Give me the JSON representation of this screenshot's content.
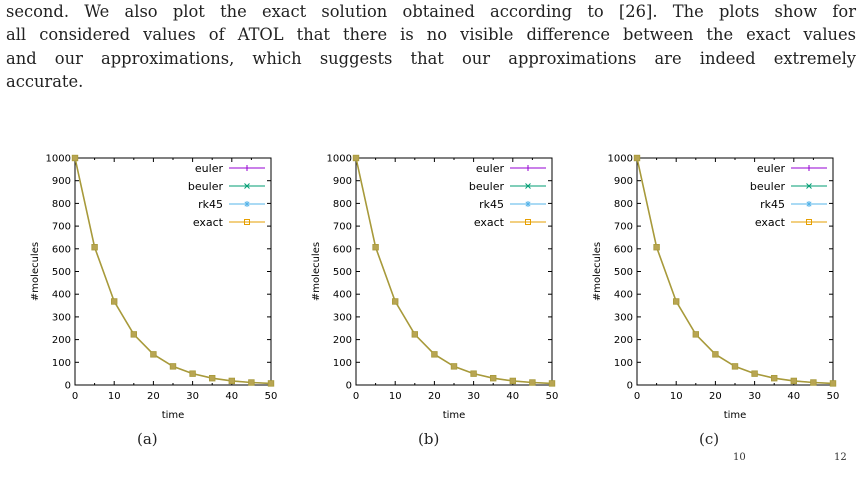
{
  "paragraph": {
    "lines": [
      "second. We also plot the exact solution obtained according to [26]. The plots show for",
      "all considered values of ATOL that there is no visible difference between the exact values",
      "and our approximations, which suggests that our approximations are indeed extremely",
      "accurate."
    ]
  },
  "subcaptions": [
    "(a)",
    "(b)",
    "(c)"
  ],
  "footer_fragments": [
    "10",
    "12"
  ],
  "colors": {
    "euler": "#9400d3",
    "beuler": "#009e73",
    "rk45": "#56b4e9",
    "exact": "#e69f00",
    "overlap_line": "#a89a3a",
    "marker_fill": "#b8a552"
  },
  "chart_data": [
    {
      "type": "line",
      "xlabel": "time",
      "ylabel": "#molecules",
      "xlim": [
        0,
        50
      ],
      "ylim": [
        0,
        1000
      ],
      "xticks": [
        0,
        10,
        20,
        30,
        40,
        50
      ],
      "yticks": [
        0,
        100,
        200,
        300,
        400,
        500,
        600,
        700,
        800,
        900,
        1000
      ],
      "legend_position": "top-right",
      "x": [
        0,
        5,
        10,
        15,
        20,
        25,
        30,
        35,
        40,
        45,
        50
      ],
      "series": [
        {
          "name": "euler",
          "values": [
            1000,
            607,
            368,
            223,
            135,
            82,
            50,
            30,
            18,
            11,
            7
          ]
        },
        {
          "name": "beuler",
          "values": [
            1000,
            607,
            368,
            223,
            135,
            82,
            50,
            30,
            18,
            11,
            7
          ]
        },
        {
          "name": "rk45",
          "values": [
            1000,
            607,
            368,
            223,
            135,
            82,
            50,
            30,
            18,
            11,
            7
          ]
        },
        {
          "name": "exact",
          "values": [
            1000,
            607,
            368,
            223,
            135,
            82,
            50,
            30,
            18,
            11,
            7
          ]
        }
      ]
    },
    {
      "type": "line",
      "xlabel": "time",
      "ylabel": "#molecules",
      "xlim": [
        0,
        50
      ],
      "ylim": [
        0,
        1000
      ],
      "xticks": [
        0,
        10,
        20,
        30,
        40,
        50
      ],
      "yticks": [
        0,
        100,
        200,
        300,
        400,
        500,
        600,
        700,
        800,
        900,
        1000
      ],
      "legend_position": "top-right",
      "x": [
        0,
        5,
        10,
        15,
        20,
        25,
        30,
        35,
        40,
        45,
        50
      ],
      "series": [
        {
          "name": "euler",
          "values": [
            1000,
            607,
            368,
            223,
            135,
            82,
            50,
            30,
            18,
            11,
            7
          ]
        },
        {
          "name": "beuler",
          "values": [
            1000,
            607,
            368,
            223,
            135,
            82,
            50,
            30,
            18,
            11,
            7
          ]
        },
        {
          "name": "rk45",
          "values": [
            1000,
            607,
            368,
            223,
            135,
            82,
            50,
            30,
            18,
            11,
            7
          ]
        },
        {
          "name": "exact",
          "values": [
            1000,
            607,
            368,
            223,
            135,
            82,
            50,
            30,
            18,
            11,
            7
          ]
        }
      ]
    },
    {
      "type": "line",
      "xlabel": "time",
      "ylabel": "#molecules",
      "xlim": [
        0,
        50
      ],
      "ylim": [
        0,
        1000
      ],
      "xticks": [
        0,
        10,
        20,
        30,
        40,
        50
      ],
      "yticks": [
        0,
        100,
        200,
        300,
        400,
        500,
        600,
        700,
        800,
        900,
        1000
      ],
      "legend_position": "top-right",
      "x": [
        0,
        5,
        10,
        15,
        20,
        25,
        30,
        35,
        40,
        45,
        50
      ],
      "series": [
        {
          "name": "euler",
          "values": [
            1000,
            607,
            368,
            223,
            135,
            82,
            50,
            30,
            18,
            11,
            7
          ]
        },
        {
          "name": "beuler",
          "values": [
            1000,
            607,
            368,
            223,
            135,
            82,
            50,
            30,
            18,
            11,
            7
          ]
        },
        {
          "name": "rk45",
          "values": [
            1000,
            607,
            368,
            223,
            135,
            82,
            50,
            30,
            18,
            11,
            7
          ]
        },
        {
          "name": "exact",
          "values": [
            1000,
            607,
            368,
            223,
            135,
            82,
            50,
            30,
            18,
            11,
            7
          ]
        }
      ]
    }
  ]
}
